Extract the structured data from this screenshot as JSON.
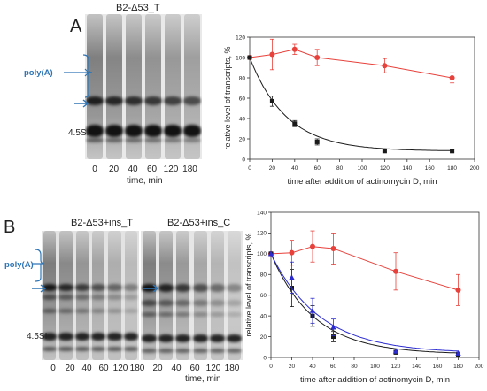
{
  "panels": {
    "A": {
      "letter": "A",
      "gel_title": "B2-Δ53_T",
      "lane_labels": [
        "0",
        "20",
        "40",
        "60",
        "120",
        "180"
      ],
      "time_caption": "time, min",
      "polyA_label": "poly(A)",
      "marker_label": "4.5SI"
    },
    "B": {
      "letter": "B",
      "gel_title_left": "B2-Δ53+ins_T",
      "gel_title_right": "B2-Δ53+ins_C",
      "lane_labels_left": [
        "0",
        "20",
        "40",
        "60",
        "120",
        "180"
      ],
      "lane_labels_right": [
        "20",
        "40",
        "60",
        "120",
        "180"
      ],
      "time_caption": "time, min",
      "polyA_label": "poly(A)",
      "marker_label": "4.5SI"
    }
  },
  "colors": {
    "red": "#e8403a",
    "black": "#1a1a1a",
    "blue": "#2b2bd0",
    "accent": "#2e75b6"
  },
  "chart_data": [
    {
      "type": "line",
      "xlabel": "time after addition of actinomycin D, min",
      "ylabel": "relative level of transcripts, %",
      "xlim": [
        0,
        200
      ],
      "ylim": [
        0,
        120
      ],
      "xticks": [
        0,
        20,
        40,
        60,
        80,
        100,
        120,
        140,
        160,
        180,
        200
      ],
      "yticks": [
        0,
        20,
        40,
        60,
        80,
        100,
        120
      ],
      "series": [
        {
          "color": "red",
          "marker": "circle",
          "x": [
            0,
            20,
            40,
            60,
            120,
            180
          ],
          "y": [
            100,
            103,
            108,
            100,
            92,
            80
          ],
          "err": [
            0,
            15,
            5,
            8,
            7,
            5
          ],
          "fit": "line"
        },
        {
          "color": "black",
          "marker": "square",
          "x": [
            0,
            20,
            40,
            60,
            120,
            180
          ],
          "y": [
            100,
            57,
            35,
            17,
            8,
            8
          ],
          "err": [
            0,
            5,
            3,
            3,
            1,
            1
          ],
          "fit": "exp"
        }
      ]
    },
    {
      "type": "line",
      "xlabel": "time after addition of actinomycin D, min",
      "ylabel": "relative level of transcripts, %",
      "xlim": [
        0,
        200
      ],
      "ylim": [
        0,
        140
      ],
      "xticks": [
        0,
        20,
        40,
        60,
        80,
        100,
        120,
        140,
        160,
        180,
        200
      ],
      "yticks": [
        0,
        20,
        40,
        60,
        80,
        100,
        120,
        140
      ],
      "series": [
        {
          "color": "red",
          "marker": "circle",
          "x": [
            0,
            20,
            40,
            60,
            120,
            180
          ],
          "y": [
            100,
            101,
            107,
            105,
            83,
            65
          ],
          "err": [
            0,
            12,
            15,
            15,
            18,
            15
          ],
          "fit": "line"
        },
        {
          "color": "black",
          "marker": "square",
          "x": [
            0,
            20,
            40,
            60,
            120,
            180
          ],
          "y": [
            100,
            67,
            40,
            20,
            5,
            3
          ],
          "err": [
            0,
            18,
            10,
            5,
            2,
            1
          ],
          "fit": "exp"
        },
        {
          "color": "blue",
          "marker": "triangle",
          "x": [
            0,
            20,
            40,
            60,
            120,
            180
          ],
          "y": [
            100,
            77,
            45,
            29,
            6,
            4
          ],
          "err": [
            0,
            15,
            12,
            8,
            2,
            1
          ],
          "fit": "exp"
        }
      ]
    }
  ]
}
